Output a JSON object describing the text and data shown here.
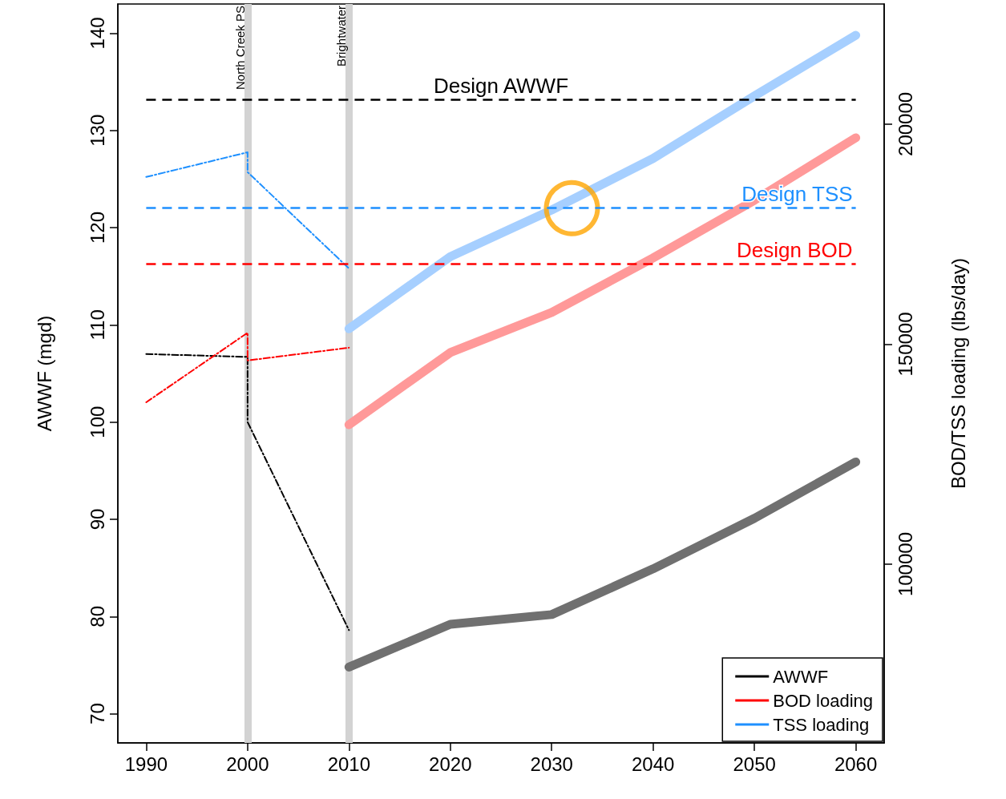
{
  "chart_data": {
    "type": "line",
    "xlabel": null,
    "ylabel": "AWWF (mgd)",
    "y2label": "BOD/TSS loading (lbs/day)",
    "xlim": [
      1987.2,
      2062.8
    ],
    "xticks": [
      1990,
      2000,
      2010,
      2020,
      2030,
      2040,
      2050,
      2060
    ],
    "ylim": [
      67,
      143
    ],
    "yticks": [
      70,
      80,
      90,
      100,
      110,
      120,
      130,
      140
    ],
    "y2lim": [
      59400,
      227300
    ],
    "y2ticks": [
      100000,
      150000,
      200000
    ],
    "grid": false,
    "legend": "bottom right",
    "marker": "none",
    "series": [
      {
        "name": "AWWF",
        "color": "#000000",
        "line_style": "dashed",
        "x": [
          1990,
          2000,
          2000,
          2010
        ],
        "values": [
          107,
          106.7,
          100,
          78.6
        ]
      },
      {
        "name": "BOD loading",
        "color": "#ff0000",
        "line_style": "dashed",
        "axis": "y2",
        "x": [
          1990,
          2000,
          2000,
          2010
        ],
        "values": [
          136800,
          152600,
          146300,
          149200
        ]
      },
      {
        "name": "TSS loading",
        "color": "#1e90ff",
        "line_style": "dashed",
        "axis": "y2",
        "x": [
          1990,
          2000,
          2000,
          2010
        ],
        "values": [
          188000,
          193600,
          189100,
          167200
        ]
      },
      {
        "color": "#707070",
        "line_style": "solid",
        "x": [
          2010,
          2020,
          2030,
          2040,
          2050,
          2060
        ],
        "values": [
          74.8,
          79.2,
          80.2,
          84.9,
          90.1,
          95.9
        ]
      },
      {
        "color": "#ff9999",
        "line_style": "solid",
        "axis": "y2",
        "x": [
          2010,
          2020,
          2030,
          2040,
          2050,
          2060
        ],
        "values": [
          131700,
          148100,
          157200,
          169600,
          182700,
          196900
        ]
      },
      {
        "color": "#a6cfff",
        "line_style": "solid",
        "axis": "y2",
        "x": [
          2010,
          2020,
          2030,
          2040,
          2050,
          2060
        ],
        "values": [
          153500,
          169900,
          180500,
          192200,
          206400,
          220200
        ]
      },
      {
        "type": "scatter",
        "color": "#ffa500",
        "marker": "circle",
        "x": [
          2032
        ],
        "values": [
          122
        ]
      }
    ],
    "ref_lines": [
      {
        "axis": "x",
        "value": 2000,
        "label": "North Creek PS",
        "color": "#d3d3d3",
        "line_style": "solid"
      },
      {
        "axis": "x",
        "value": 2010,
        "label": "Brightwater",
        "color": "#d3d3d3",
        "line_style": "solid"
      },
      {
        "axis": "y",
        "value": 133.2,
        "label": "Design AWWF",
        "color": "#000000",
        "line_style": "dashed"
      },
      {
        "axis": "y2",
        "value": 181000,
        "label": "Design TSS",
        "color": "#1e90ff",
        "line_style": "dashed"
      },
      {
        "axis": "y2",
        "value": 168300,
        "label": "Design BOD",
        "color": "#ff0000",
        "line_style": "dashed"
      }
    ]
  }
}
